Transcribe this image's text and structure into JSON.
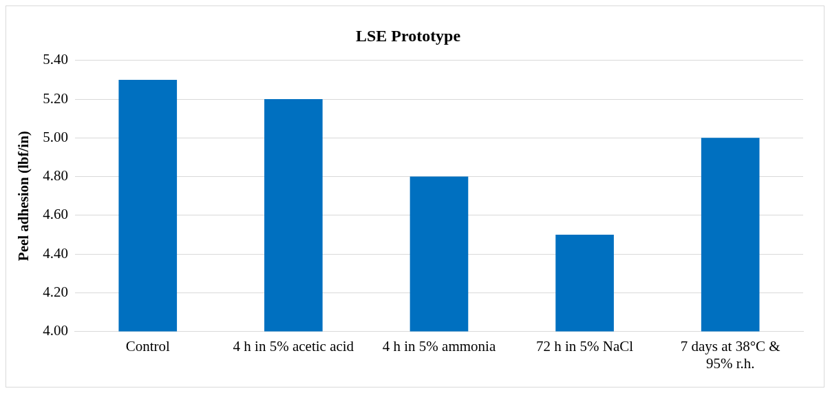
{
  "chart_data": {
    "type": "bar",
    "title": "LSE Prototype",
    "ylabel": "Peel adhesion (lbf/in)",
    "categories": [
      "Control",
      "4 h in 5% acetic acid",
      "4 h in 5% ammonia",
      "72 h in 5% NaCl",
      "7 days at 38°C & 95% r.h."
    ],
    "values": [
      5.3,
      5.2,
      4.8,
      4.5,
      5.0
    ],
    "color": "#0070c0",
    "ylim": [
      4.0,
      5.4
    ],
    "yticks": [
      {
        "value": 4.0,
        "label": "4.00"
      },
      {
        "value": 4.2,
        "label": "4.20"
      },
      {
        "value": 4.4,
        "label": "4.40"
      },
      {
        "value": 4.6,
        "label": "4.60"
      },
      {
        "value": 4.8,
        "label": "4.80"
      },
      {
        "value": 5.0,
        "label": "5.00"
      },
      {
        "value": 5.2,
        "label": "5.20"
      },
      {
        "value": 5.4,
        "label": "5.40"
      }
    ],
    "grid": "y"
  }
}
